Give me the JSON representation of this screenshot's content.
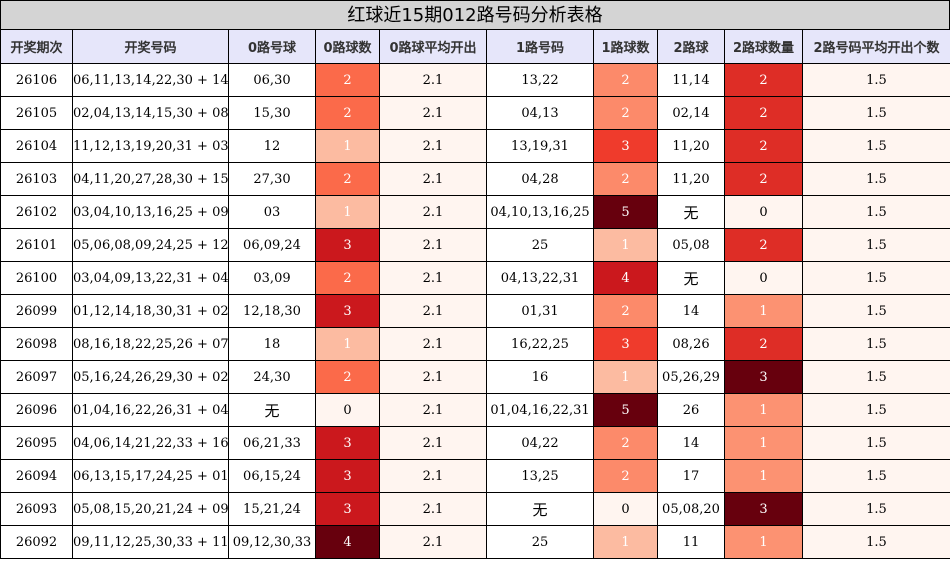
{
  "title": "红球近15期012路号码分析表格",
  "headers": [
    "开奖期次",
    "开奖号码",
    "0路号球",
    "0路球数",
    "0路球平均开出",
    "1路号码",
    "1路球数",
    "2路球",
    "2路球数量",
    "2路号码平均开出个数"
  ],
  "colors": {
    "0": "#fff5f0",
    "1": "#fcbba1",
    "2": "#fb6a4a",
    "3": "#cb181d",
    "4": "#67000d",
    "5": "#67000d",
    "c1_1": "#fcbba1",
    "c1_2": "#fc8a6a",
    "c1_3": "#ef3b2c",
    "c1_4": "#cb181d",
    "c1_5": "#67000d",
    "c2_1": "#fc9272",
    "c2_2": "#de2d26",
    "c2_3": "#67000d"
  },
  "rows": [
    {
      "issue": "26106",
      "numbers": "06,11,13,14,22,30 + 14",
      "r0": "06,30",
      "c0": "2",
      "avg0": "2.1",
      "r1": "13,22",
      "c1": "2",
      "r2": "11,14",
      "c2": "2",
      "avg2": "1.5"
    },
    {
      "issue": "26105",
      "numbers": "02,04,13,14,15,30 + 08",
      "r0": "15,30",
      "c0": "2",
      "avg0": "2.1",
      "r1": "04,13",
      "c1": "2",
      "r2": "02,14",
      "c2": "2",
      "avg2": "1.5"
    },
    {
      "issue": "26104",
      "numbers": "11,12,13,19,20,31 + 03",
      "r0": "12",
      "c0": "1",
      "avg0": "2.1",
      "r1": "13,19,31",
      "c1": "3",
      "r2": "11,20",
      "c2": "2",
      "avg2": "1.5"
    },
    {
      "issue": "26103",
      "numbers": "04,11,20,27,28,30 + 15",
      "r0": "27,30",
      "c0": "2",
      "avg0": "2.1",
      "r1": "04,28",
      "c1": "2",
      "r2": "11,20",
      "c2": "2",
      "avg2": "1.5"
    },
    {
      "issue": "26102",
      "numbers": "03,04,10,13,16,25 + 09",
      "r0": "03",
      "c0": "1",
      "avg0": "2.1",
      "r1": "04,10,13,16,25",
      "c1": "5",
      "r2": "无",
      "c2": "0",
      "avg2": "1.5"
    },
    {
      "issue": "26101",
      "numbers": "05,06,08,09,24,25 + 12",
      "r0": "06,09,24",
      "c0": "3",
      "avg0": "2.1",
      "r1": "25",
      "c1": "1",
      "r2": "05,08",
      "c2": "2",
      "avg2": "1.5"
    },
    {
      "issue": "26100",
      "numbers": "03,04,09,13,22,31 + 04",
      "r0": "03,09",
      "c0": "2",
      "avg0": "2.1",
      "r1": "04,13,22,31",
      "c1": "4",
      "r2": "无",
      "c2": "0",
      "avg2": "1.5"
    },
    {
      "issue": "26099",
      "numbers": "01,12,14,18,30,31 + 02",
      "r0": "12,18,30",
      "c0": "3",
      "avg0": "2.1",
      "r1": "01,31",
      "c1": "2",
      "r2": "14",
      "c2": "1",
      "avg2": "1.5"
    },
    {
      "issue": "26098",
      "numbers": "08,16,18,22,25,26 + 07",
      "r0": "18",
      "c0": "1",
      "avg0": "2.1",
      "r1": "16,22,25",
      "c1": "3",
      "r2": "08,26",
      "c2": "2",
      "avg2": "1.5"
    },
    {
      "issue": "26097",
      "numbers": "05,16,24,26,29,30 + 02",
      "r0": "24,30",
      "c0": "2",
      "avg0": "2.1",
      "r1": "16",
      "c1": "1",
      "r2": "05,26,29",
      "c2": "3",
      "avg2": "1.5"
    },
    {
      "issue": "26096",
      "numbers": "01,04,16,22,26,31 + 04",
      "r0": "无",
      "c0": "0",
      "avg0": "2.1",
      "r1": "01,04,16,22,31",
      "c1": "5",
      "r2": "26",
      "c2": "1",
      "avg2": "1.5"
    },
    {
      "issue": "26095",
      "numbers": "04,06,14,21,22,33 + 16",
      "r0": "06,21,33",
      "c0": "3",
      "avg0": "2.1",
      "r1": "04,22",
      "c1": "2",
      "r2": "14",
      "c2": "1",
      "avg2": "1.5"
    },
    {
      "issue": "26094",
      "numbers": "06,13,15,17,24,25 + 01",
      "r0": "06,15,24",
      "c0": "3",
      "avg0": "2.1",
      "r1": "13,25",
      "c1": "2",
      "r2": "17",
      "c2": "1",
      "avg2": "1.5"
    },
    {
      "issue": "26093",
      "numbers": "05,08,15,20,21,24 + 09",
      "r0": "15,21,24",
      "c0": "3",
      "avg0": "2.1",
      "r1": "无",
      "c1": "0",
      "r2": "05,08,20",
      "c2": "3",
      "avg2": "1.5"
    },
    {
      "issue": "26092",
      "numbers": "09,11,12,25,30,33 + 11",
      "r0": "09,12,30,33",
      "c0": "4",
      "avg0": "2.1",
      "r1": "25",
      "c1": "1",
      "r2": "11",
      "c2": "1",
      "avg2": "1.5"
    }
  ]
}
